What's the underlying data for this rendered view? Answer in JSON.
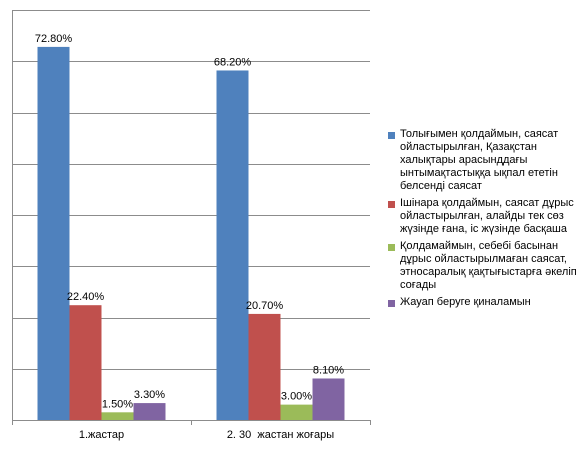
{
  "chart_data": {
    "type": "bar",
    "categories": [
      "1.жастар",
      "2. 30  жастан жоғары"
    ],
    "ylim": [
      0,
      80
    ],
    "grid": true,
    "legend_position": "right",
    "series": [
      {
        "name": "Толығымен қолдаймын, саясат ойластырылған, Қазақстан халықтары арасынддағы ынтымақтастыққа ықпал ететін белсенді саясат",
        "values": [
          72.8,
          68.2
        ],
        "labels": [
          "72.80%",
          "68.20%"
        ],
        "color": "#4f81bd"
      },
      {
        "name": "Ішінара қолдаймын, саясат дұрыс ойластырылған, алайды тек сөз жүзінде ғана, іс жүзінде басқаша",
        "values": [
          22.4,
          20.7
        ],
        "labels": [
          "22.40%",
          "20.70%"
        ],
        "color": "#c0504d"
      },
      {
        "name": "Қолдамаймын, себебі басынан дұрыс ойластырылмаған саясат, этносаралық қақтығыстарға әкеліп соғады",
        "values": [
          1.5,
          3.0
        ],
        "labels": [
          "1.50%",
          "3.00%"
        ],
        "color": "#9bbb59"
      },
      {
        "name": "Жауап беруге қиналамын",
        "values": [
          3.3,
          8.1
        ],
        "labels": [
          "3.30%",
          "8.10%"
        ],
        "color": "#8064a2"
      }
    ]
  }
}
